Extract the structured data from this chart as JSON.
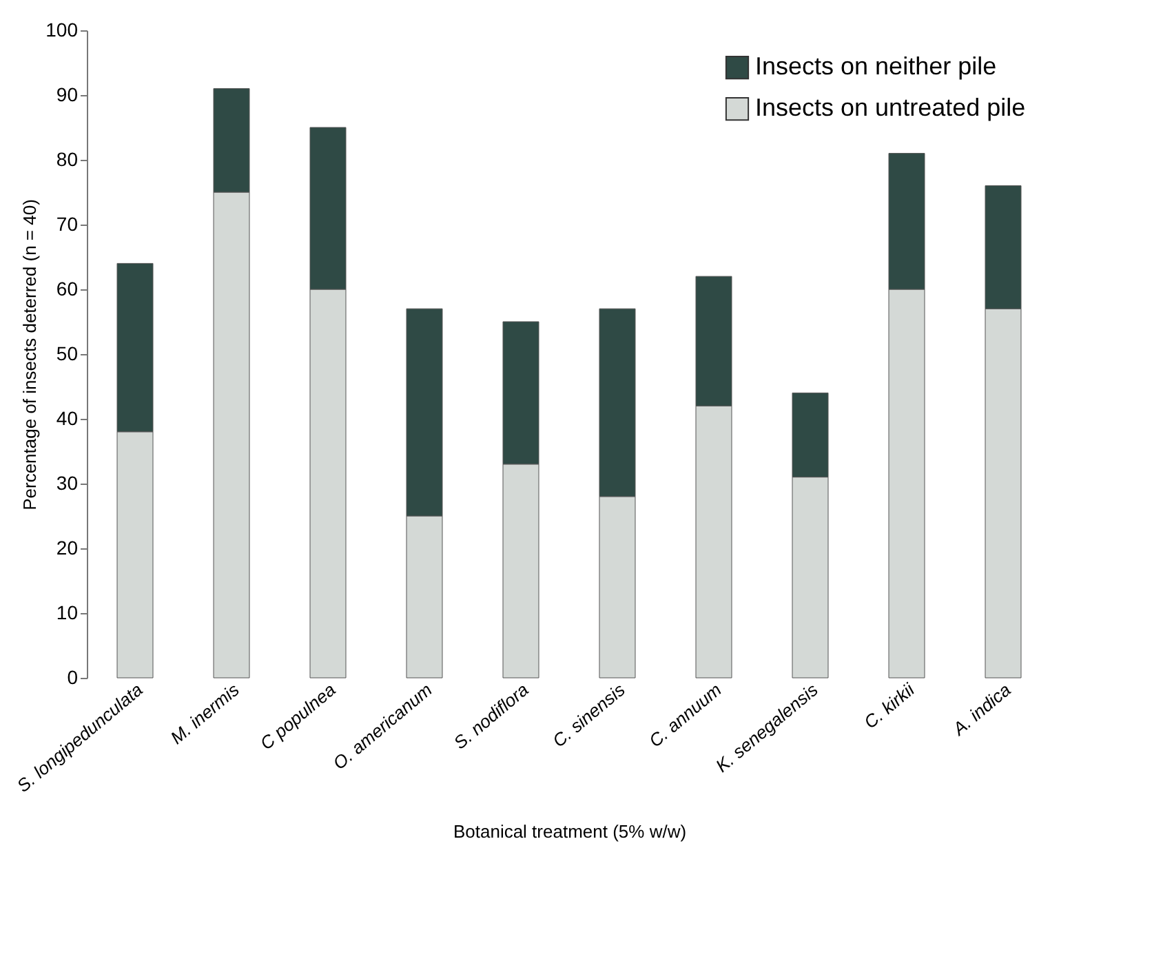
{
  "chart_data": {
    "type": "bar",
    "stacked": true,
    "xlabel": "Botanical treatment (5% w/w)",
    "ylabel": "Percentage of insects deterred (n = 40)",
    "categories": [
      "S. longipedunculata",
      "M. inermis",
      "C populnea",
      "O. americanum",
      "S. nodiflora",
      "C. sinensis",
      "C. annuum",
      "K. senegalensis",
      "C. kirkii",
      "A. indica"
    ],
    "series": [
      {
        "name": "Insects on untreated pile",
        "color": "#d4d9d6",
        "values": [
          38,
          75,
          60,
          25,
          33,
          28,
          42,
          31,
          60,
          57
        ]
      },
      {
        "name": "Insects on neither pile",
        "color": "#2f4a45",
        "values": [
          26,
          16,
          25,
          32,
          22,
          29,
          20,
          13,
          21,
          19
        ]
      }
    ],
    "ylim": [
      0,
      100
    ],
    "yticks": [
      0,
      10,
      20,
      30,
      40,
      50,
      60,
      70,
      80,
      90,
      100
    ],
    "legend": "top right",
    "grid": false
  }
}
